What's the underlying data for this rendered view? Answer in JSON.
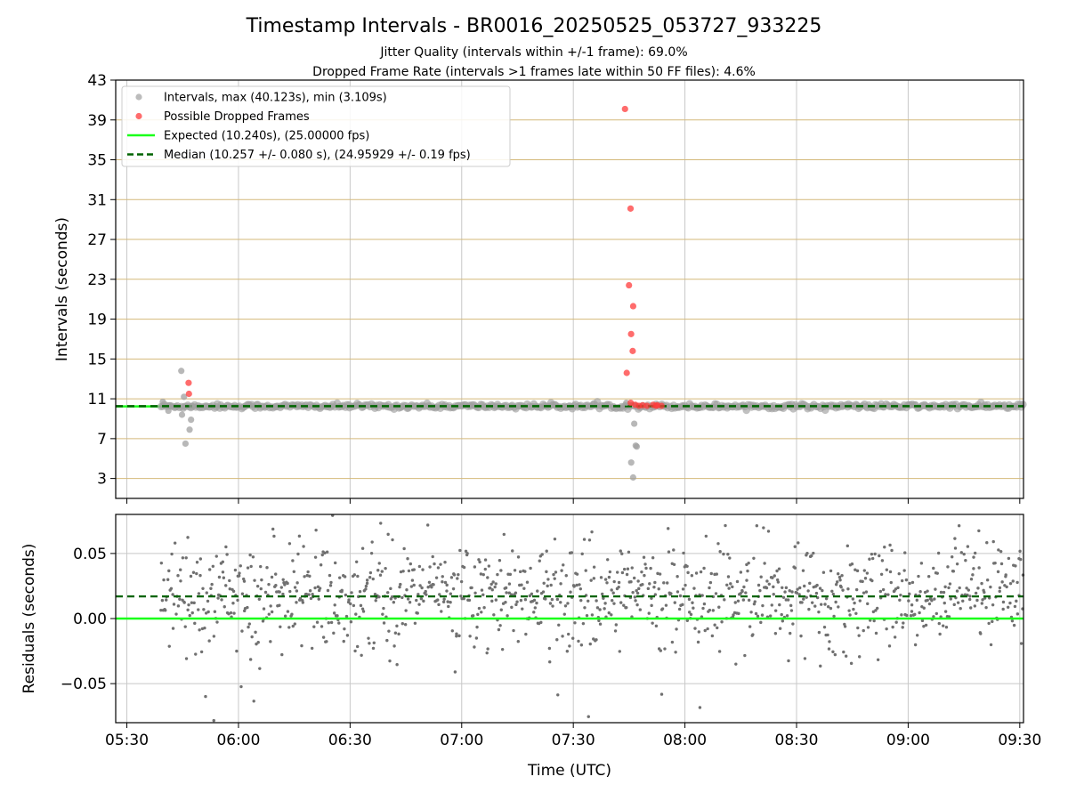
{
  "figure": {
    "title": "Timestamp Intervals - BR0016_20250525_053727_933225",
    "subtitle_1": "Jitter Quality (intervals within +/-1 frame): 69.0%",
    "subtitle_2": "Dropped Frame Rate (intervals >1 frames late within 50 FF files): 4.6%"
  },
  "colors": {
    "intervals": "#a0a0a0",
    "dropped": "#ff3b3b",
    "expected": "#1aff1a",
    "median": "#006400",
    "hgrid_top": "#d4b97a",
    "grid": "#c8c8c8",
    "residual_points": "#707070"
  },
  "chart_data": [
    {
      "type": "scatter",
      "panel": "intervals",
      "xlabel": "",
      "ylabel": "Intervals (seconds)",
      "x_is_time": true,
      "xlim": [
        "05:27",
        "09:31"
      ],
      "ylim": [
        1,
        43
      ],
      "yticks": [
        3,
        7,
        11,
        15,
        19,
        23,
        27,
        31,
        35,
        39,
        43
      ],
      "xticks": [
        "05:30",
        "06:00",
        "06:30",
        "07:00",
        "07:30",
        "08:00",
        "08:30",
        "09:00",
        "09:30"
      ],
      "grid": "on",
      "legend_position": "top-left",
      "legend": [
        "Intervals, max (40.123s), min (3.109s)",
        "Possible Dropped Frames",
        "Expected (10.240s), (25.00000 fps)",
        "Median (10.257 +/- 0.080 s), (24.95929 +/- 0.19 fps)"
      ],
      "expected_value": 10.24,
      "median_value": 10.257,
      "baseline_band": {
        "x_start": "05:39",
        "x_end": "09:31",
        "y_center": 10.25
      },
      "series": [
        {
          "name": "Intervals, max (40.123s), min (3.109s)",
          "points": [
            [
              "05:40",
              10.7
            ],
            [
              "05:41",
              9.8
            ],
            [
              "05:45",
              13.8
            ],
            [
              "05:45",
              11.2
            ],
            [
              "05:45",
              9.4
            ],
            [
              "05:46",
              6.5
            ],
            [
              "05:47",
              8.9
            ],
            [
              "05:47",
              7.9
            ],
            [
              "05:48",
              10.3
            ],
            [
              "07:44",
              10.6
            ],
            [
              "07:46",
              8.5
            ],
            [
              "07:46",
              4.6
            ],
            [
              "07:46",
              3.1
            ],
            [
              "07:47",
              6.3
            ],
            [
              "07:47",
              6.2
            ]
          ]
        },
        {
          "name": "Possible Dropped Frames",
          "points": [
            [
              "07:44",
              40.1
            ],
            [
              "07:45",
              30.1
            ],
            [
              "07:45",
              22.4
            ],
            [
              "07:46",
              20.3
            ],
            [
              "07:46",
              17.5
            ],
            [
              "07:46",
              15.8
            ],
            [
              "07:44",
              13.6
            ],
            [
              "07:45",
              10.6
            ],
            [
              "05:47",
              12.6
            ],
            [
              "05:47",
              11.5
            ],
            [
              "07:47",
              10.4
            ],
            [
              "07:48",
              10.3
            ],
            [
              "07:49",
              10.35
            ],
            [
              "07:50",
              10.3
            ],
            [
              "07:51",
              10.4
            ],
            [
              "07:52",
              10.3
            ],
            [
              "07:53",
              10.35
            ],
            [
              "07:54",
              10.3
            ]
          ]
        }
      ]
    },
    {
      "type": "scatter",
      "panel": "residuals",
      "xlabel": "Time (UTC)",
      "ylabel": "Residuals (seconds)",
      "x_is_time": true,
      "xlim": [
        "05:27",
        "09:31"
      ],
      "ylim": [
        -0.08,
        0.08
      ],
      "yticks": [
        -0.05,
        0.0,
        0.05
      ],
      "ytick_labels": [
        "−0.05",
        "0.00",
        "0.05"
      ],
      "xticks": [
        "05:30",
        "06:00",
        "06:30",
        "07:00",
        "07:30",
        "08:00",
        "08:30",
        "09:00",
        "09:30"
      ],
      "grid": "on",
      "expected_residual": 0.0,
      "median_residual": 0.017,
      "residual_cloud": {
        "x_start": "05:39",
        "x_end": "09:31",
        "mean": 0.017,
        "spread": 0.02
      }
    }
  ]
}
